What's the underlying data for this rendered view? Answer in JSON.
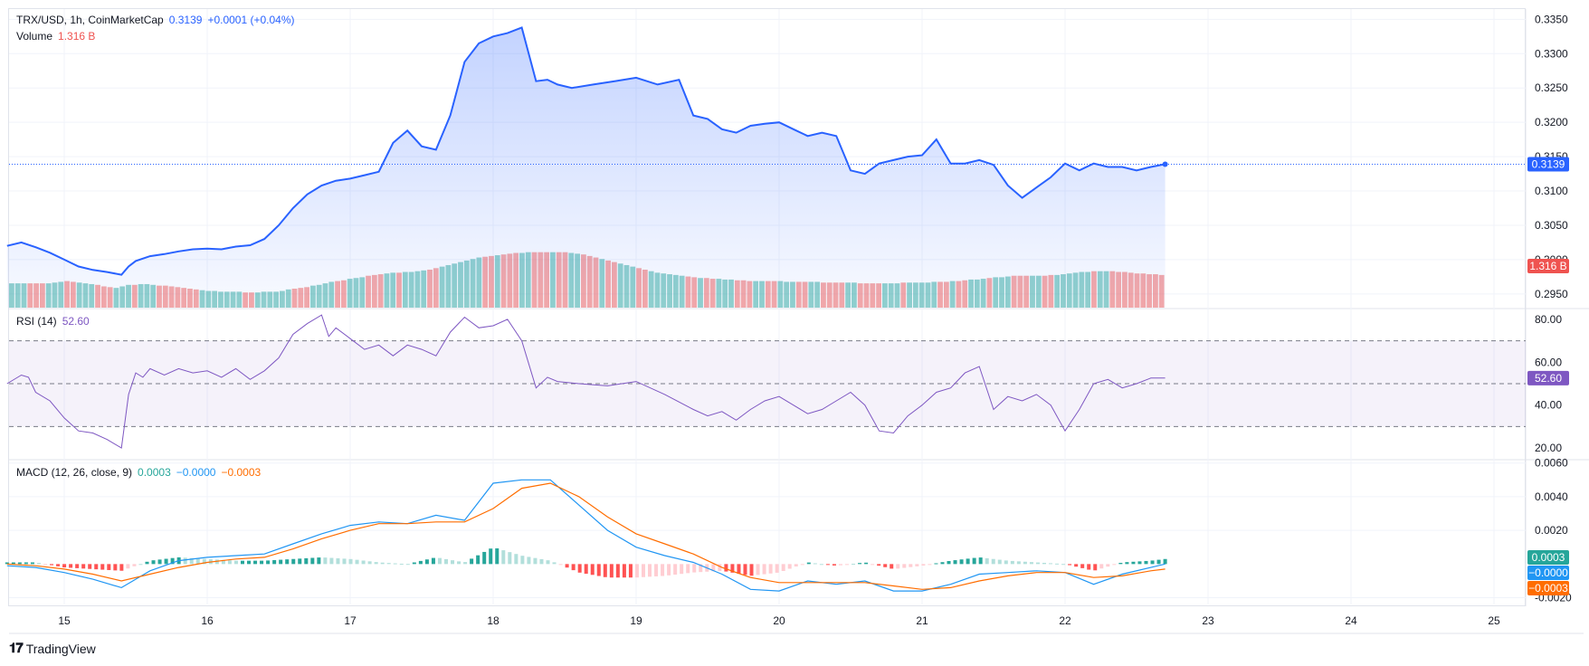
{
  "header": {
    "symbol": "TRX/USD, 1h, CoinMarketCap",
    "price": "0.3139",
    "change": "+0.0001 (+0.04%)",
    "volume_label": "Volume",
    "volume_value": "1.316 B"
  },
  "rsi_header": {
    "label": "RSI (14)",
    "value": "52.60"
  },
  "macd_header": {
    "label": "MACD (12, 26, close, 9)",
    "hist": "0.0003",
    "macd": "−0.0000",
    "signal": "−0.0003"
  },
  "brand": "TradingView",
  "colors": {
    "price_line": "#2962ff",
    "up": "#26a69a",
    "down": "#ef5350",
    "rsi": "#7e57c2",
    "macd": "#2196f3",
    "signal": "#ff6d00"
  },
  "chart_data": [
    {
      "type": "area",
      "name": "price",
      "x_labels": [
        "15",
        "16",
        "17",
        "18",
        "19",
        "20",
        "21",
        "22",
        "23",
        "24",
        "25"
      ],
      "y_ticks": [
        "0.3350",
        "0.3300",
        "0.3250",
        "0.3200",
        "0.3150",
        "0.3100",
        "0.3050",
        "0.3000",
        "0.2950"
      ],
      "ylim": [
        0.293,
        0.3365
      ],
      "last_price": "0.3139",
      "volume_tag": "1.316 B",
      "x": [
        14.6,
        14.7,
        14.8,
        14.9,
        15.0,
        15.1,
        15.2,
        15.3,
        15.4,
        15.45,
        15.5,
        15.6,
        15.7,
        15.8,
        15.9,
        16.0,
        16.1,
        16.2,
        16.3,
        16.4,
        16.5,
        16.6,
        16.7,
        16.8,
        16.9,
        17.0,
        17.1,
        17.2,
        17.3,
        17.4,
        17.5,
        17.6,
        17.7,
        17.8,
        17.9,
        18.0,
        18.1,
        18.2,
        18.3,
        18.38,
        18.45,
        18.55,
        18.7,
        18.85,
        19.0,
        19.15,
        19.3,
        19.4,
        19.5,
        19.6,
        19.7,
        19.8,
        19.9,
        20.0,
        20.1,
        20.2,
        20.3,
        20.4,
        20.5,
        20.6,
        20.7,
        20.8,
        20.9,
        21.0,
        21.1,
        21.2,
        21.3,
        21.4,
        21.5,
        21.6,
        21.7,
        21.8,
        21.9,
        22.0,
        22.1,
        22.2,
        22.3,
        22.4,
        22.5,
        22.6,
        22.7
      ],
      "y": [
        0.302,
        0.3025,
        0.3018,
        0.301,
        0.3,
        0.299,
        0.2985,
        0.2982,
        0.2978,
        0.299,
        0.2998,
        0.3005,
        0.3008,
        0.3012,
        0.3015,
        0.3016,
        0.3015,
        0.3019,
        0.3021,
        0.303,
        0.305,
        0.3075,
        0.3095,
        0.3108,
        0.3115,
        0.3118,
        0.3123,
        0.3128,
        0.317,
        0.3188,
        0.3165,
        0.316,
        0.321,
        0.3288,
        0.3315,
        0.3325,
        0.333,
        0.3338,
        0.326,
        0.3262,
        0.3255,
        0.325,
        0.3255,
        0.326,
        0.3265,
        0.3255,
        0.3262,
        0.321,
        0.3205,
        0.319,
        0.3185,
        0.3195,
        0.3198,
        0.32,
        0.319,
        0.318,
        0.3185,
        0.318,
        0.313,
        0.3125,
        0.314,
        0.3145,
        0.315,
        0.3152,
        0.3175,
        0.314,
        0.314,
        0.3145,
        0.3138,
        0.3108,
        0.309,
        0.3105,
        0.312,
        0.314,
        0.313,
        0.314,
        0.3135,
        0.3135,
        0.313,
        0.3135,
        0.3139
      ],
      "volume": {
        "scale_max": 1.0,
        "values": [
          0.32,
          0.32,
          0.32,
          0.32,
          0.32,
          0.32,
          0.32,
          0.33,
          0.34,
          0.35,
          0.34,
          0.33,
          0.32,
          0.31,
          0.3,
          0.28,
          0.27,
          0.26,
          0.28,
          0.3,
          0.3,
          0.31,
          0.31,
          0.3,
          0.29,
          0.29,
          0.28,
          0.27,
          0.26,
          0.25,
          0.24,
          0.23,
          0.22,
          0.22,
          0.21,
          0.21,
          0.21,
          0.21,
          0.2,
          0.2,
          0.2,
          0.21,
          0.21,
          0.21,
          0.22,
          0.24,
          0.25,
          0.26,
          0.27,
          0.29,
          0.3,
          0.32,
          0.34,
          0.35,
          0.36,
          0.38,
          0.39,
          0.4,
          0.42,
          0.43,
          0.44,
          0.45,
          0.46,
          0.46,
          0.47,
          0.47,
          0.48,
          0.49,
          0.5,
          0.52,
          0.54,
          0.56,
          0.58,
          0.6,
          0.62,
          0.64,
          0.66,
          0.67,
          0.68,
          0.69,
          0.7,
          0.71,
          0.72,
          0.72,
          0.73,
          0.73,
          0.73,
          0.73,
          0.73,
          0.73,
          0.73,
          0.72,
          0.71,
          0.7,
          0.68,
          0.66,
          0.64,
          0.62,
          0.6,
          0.58,
          0.56,
          0.54,
          0.52,
          0.5,
          0.48,
          0.46,
          0.45,
          0.44,
          0.43,
          0.42,
          0.41,
          0.4,
          0.39,
          0.39,
          0.38,
          0.38,
          0.37,
          0.37,
          0.36,
          0.36,
          0.35,
          0.35,
          0.35,
          0.35,
          0.35,
          0.35,
          0.34,
          0.34,
          0.34,
          0.34,
          0.34,
          0.34,
          0.33,
          0.33,
          0.33,
          0.33,
          0.33,
          0.33,
          0.32,
          0.32,
          0.32,
          0.32,
          0.32,
          0.32,
          0.32,
          0.33,
          0.33,
          0.33,
          0.33,
          0.33,
          0.34,
          0.34,
          0.34,
          0.35,
          0.35,
          0.36,
          0.37,
          0.37,
          0.38,
          0.39,
          0.4,
          0.4,
          0.41,
          0.42,
          0.42,
          0.42,
          0.42,
          0.42,
          0.42,
          0.43,
          0.43,
          0.44,
          0.45,
          0.46,
          0.47,
          0.47,
          0.48,
          0.48,
          0.48,
          0.48,
          0.47,
          0.47,
          0.46,
          0.45,
          0.45,
          0.44,
          0.44,
          0.43
        ],
        "up": [
          1,
          1,
          1,
          0,
          0,
          0,
          1,
          1,
          1,
          0,
          0,
          1,
          1,
          1,
          0,
          0,
          0,
          1,
          1,
          1,
          0,
          1,
          1,
          1,
          0,
          0,
          0,
          0,
          0,
          0,
          0,
          1,
          1,
          1,
          1,
          1,
          1,
          1,
          0,
          0,
          1,
          1,
          1,
          1,
          1,
          1,
          0,
          0,
          0,
          1,
          1,
          1,
          1,
          0,
          0,
          1,
          1,
          1,
          0,
          0,
          0,
          1,
          1,
          0,
          1,
          1,
          1,
          1,
          0,
          0,
          1,
          1,
          1,
          1,
          1,
          1,
          1,
          0,
          0,
          1,
          0,
          0,
          0,
          1,
          1,
          0,
          0,
          0,
          1,
          0,
          0,
          1,
          1,
          0,
          0,
          0,
          1,
          0,
          0,
          1,
          1,
          1,
          0,
          0,
          1,
          1,
          1,
          1,
          1,
          1,
          0,
          0,
          1,
          0,
          0,
          1,
          1,
          1,
          0,
          0,
          0,
          1,
          1,
          0,
          0,
          1,
          1,
          1,
          0,
          0,
          1,
          1,
          0,
          0,
          0,
          0,
          1,
          1,
          0,
          0,
          0,
          0,
          1,
          1,
          1,
          0,
          1,
          1,
          1,
          1,
          1,
          0,
          0,
          1,
          0,
          0,
          1,
          1,
          1,
          0,
          1,
          1,
          1,
          0,
          0,
          0,
          1,
          1,
          0,
          0,
          1,
          1,
          1,
          1,
          1,
          1,
          0,
          1,
          1,
          0,
          0,
          0,
          0,
          0,
          0
        ]
      }
    },
    {
      "type": "line",
      "name": "RSI (14)",
      "y_ticks": [
        "80.00",
        "60.00",
        "40.00",
        "20.00"
      ],
      "ylim": [
        15,
        85
      ],
      "bands": [
        70,
        50,
        30
      ],
      "last_value": "52.60",
      "x": [
        14.6,
        14.7,
        14.75,
        14.8,
        14.9,
        15.0,
        15.1,
        15.2,
        15.3,
        15.4,
        15.45,
        15.5,
        15.55,
        15.6,
        15.7,
        15.8,
        15.9,
        16.0,
        16.1,
        16.2,
        16.3,
        16.4,
        16.5,
        16.6,
        16.7,
        16.8,
        16.85,
        16.9,
        17.0,
        17.1,
        17.2,
        17.3,
        17.4,
        17.5,
        17.6,
        17.7,
        17.8,
        17.9,
        18.0,
        18.1,
        18.2,
        18.3,
        18.38,
        18.45,
        18.6,
        18.8,
        19.0,
        19.2,
        19.4,
        19.5,
        19.6,
        19.7,
        19.8,
        19.9,
        20.0,
        20.1,
        20.2,
        20.3,
        20.4,
        20.5,
        20.6,
        20.7,
        20.8,
        20.9,
        21.0,
        21.1,
        21.2,
        21.3,
        21.4,
        21.5,
        21.6,
        21.7,
        21.8,
        21.9,
        22.0,
        22.1,
        22.2,
        22.3,
        22.4,
        22.5,
        22.6,
        22.7
      ],
      "y": [
        50,
        54,
        53,
        46,
        42,
        34,
        28,
        27,
        24,
        20,
        45,
        55,
        53,
        57,
        54,
        57,
        55,
        56,
        53,
        57,
        52,
        56,
        62,
        73,
        78,
        82,
        72,
        76,
        71,
        66,
        68,
        63,
        68,
        66,
        63,
        74,
        81,
        76,
        77,
        80,
        70,
        48,
        53,
        51,
        50,
        49,
        51,
        45,
        38,
        35,
        37,
        33,
        38,
        42,
        44,
        40,
        36,
        38,
        42,
        46,
        40,
        28,
        27,
        35,
        40,
        46,
        48,
        55,
        58,
        38,
        44,
        42,
        45,
        40,
        28,
        38,
        50,
        52,
        48,
        50,
        52.6,
        52.6
      ]
    },
    {
      "type": "line",
      "name": "MACD (12, 26, close, 9)",
      "y_ticks": [
        "0.0060",
        "0.0040",
        "0.0020",
        "-0.0020"
      ],
      "ylim": [
        -0.0024,
        0.0062
      ],
      "last_values": {
        "hist": "0.0003",
        "macd": "−0.0000",
        "signal": "−0.0003"
      },
      "x": [
        14.6,
        14.8,
        15.0,
        15.2,
        15.4,
        15.6,
        15.8,
        16.0,
        16.2,
        16.4,
        16.6,
        16.8,
        17.0,
        17.2,
        17.4,
        17.6,
        17.8,
        18.0,
        18.2,
        18.4,
        18.6,
        18.8,
        19.0,
        19.2,
        19.4,
        19.6,
        19.8,
        20.0,
        20.2,
        20.4,
        20.6,
        20.8,
        21.0,
        21.2,
        21.4,
        21.6,
        21.8,
        22.0,
        22.2,
        22.4,
        22.6,
        22.7
      ],
      "macd": [
        -0.0001,
        -0.0002,
        -0.0005,
        -0.0009,
        -0.0014,
        -0.0004,
        0.0002,
        0.0004,
        0.0005,
        0.0006,
        0.0012,
        0.0018,
        0.0023,
        0.0025,
        0.0024,
        0.0029,
        0.0026,
        0.0048,
        0.005,
        0.005,
        0.0035,
        0.002,
        0.001,
        0.0005,
        0.0001,
        -0.0006,
        -0.0015,
        -0.0016,
        -0.001,
        -0.0012,
        -0.001,
        -0.0016,
        -0.0016,
        -0.0012,
        -0.0006,
        -0.0005,
        -0.0004,
        -0.0005,
        -0.0012,
        -0.0006,
        -0.0002,
        0.0
      ],
      "signal": [
        0.0,
        -0.0001,
        -0.0003,
        -0.0006,
        -0.001,
        -0.0006,
        -0.0002,
        0.0001,
        0.0003,
        0.0004,
        0.0009,
        0.0015,
        0.002,
        0.0024,
        0.0024,
        0.0025,
        0.0025,
        0.0033,
        0.0045,
        0.0048,
        0.004,
        0.0028,
        0.0018,
        0.0012,
        0.0006,
        -0.0002,
        -0.0008,
        -0.0011,
        -0.0011,
        -0.0011,
        -0.0011,
        -0.0013,
        -0.0015,
        -0.0014,
        -0.001,
        -0.0007,
        -0.0005,
        -0.0005,
        -0.0008,
        -0.0007,
        -0.0004,
        -0.0003
      ],
      "histogram": [
        0.0001,
        0.0001,
        -0.0002,
        -0.0003,
        -0.0004,
        0.0002,
        0.0004,
        0.0003,
        0.0002,
        0.0002,
        0.0003,
        0.0004,
        0.0003,
        0.0001,
        0.0,
        0.0004,
        0.0001,
        0.001,
        0.0005,
        0.0002,
        -0.0005,
        -0.0008,
        -0.0008,
        -0.0007,
        -0.0005,
        -0.0004,
        -0.0007,
        -0.0005,
        0.0001,
        -0.0001,
        0.0001,
        -0.0003,
        -0.0001,
        0.0002,
        0.0004,
        0.0002,
        0.0001,
        0.0,
        -0.0004,
        0.0001,
        0.0002,
        0.0003
      ]
    }
  ]
}
